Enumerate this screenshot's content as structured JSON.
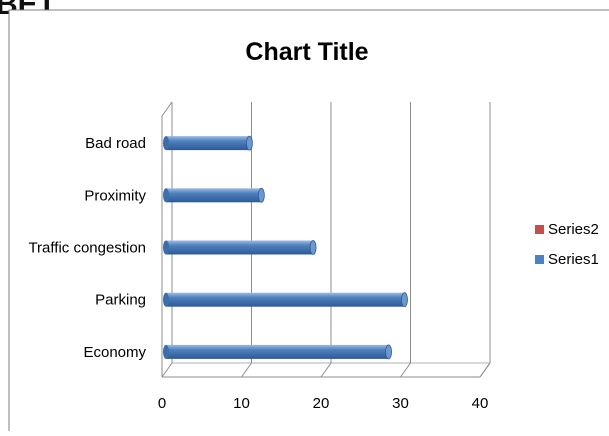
{
  "header_fragment": "BET",
  "chart_data": {
    "type": "bar",
    "orientation": "horizontal",
    "title": "Chart Title",
    "categories": [
      "Bad road",
      "Proximity",
      "Traffic congestion",
      "Parking",
      "Economy"
    ],
    "series": [
      {
        "name": "Series2",
        "values": [
          0,
          0,
          0,
          0,
          0
        ],
        "color": "#c0504d"
      },
      {
        "name": "Series1",
        "values": [
          11,
          12.5,
          19,
          30.5,
          28.5
        ],
        "color": "#4f81bd"
      }
    ],
    "xlim": [
      0,
      40
    ],
    "xticks": [
      "0",
      "10",
      "20",
      "30",
      "40"
    ],
    "xlabel": "",
    "ylabel": "",
    "grid": true,
    "legend_position": "right",
    "style": "3d-cylinder"
  }
}
